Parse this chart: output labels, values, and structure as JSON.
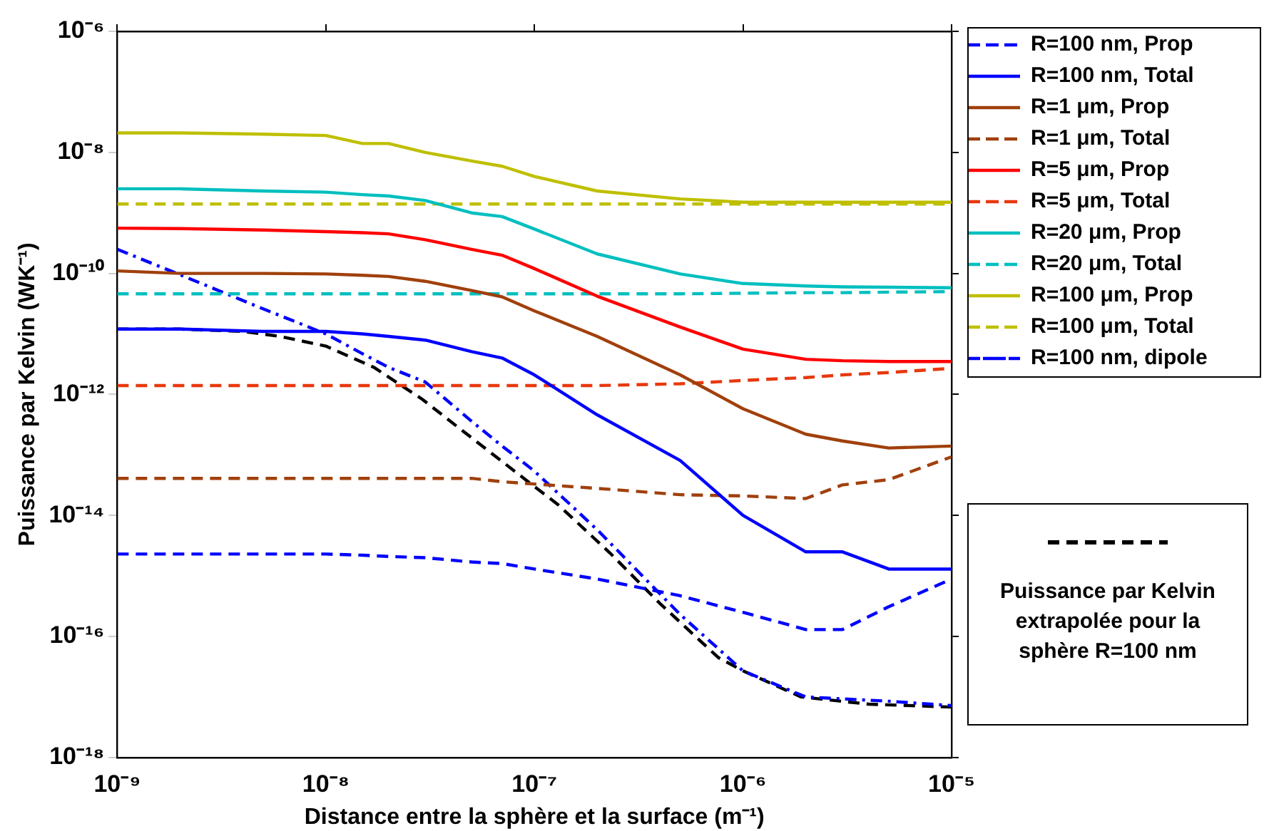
{
  "chart_data": {
    "type": "line",
    "xlabel": "Distance entre la sphère et la surface (m⁻¹)",
    "ylabel": "Puissance par Kelvin (WK⁻¹)",
    "log": "xy",
    "grid": false,
    "legend": "right",
    "marker": "none",
    "xlim": [
      1e-09,
      1e-05
    ],
    "xticks": [
      {
        "value": 1e-09,
        "label": "10⁻⁹"
      },
      {
        "value": 1e-08,
        "label": "10⁻⁸"
      },
      {
        "value": 1e-07,
        "label": "10⁻⁷"
      },
      {
        "value": 1e-06,
        "label": "10⁻⁶"
      },
      {
        "value": 1e-05,
        "label": "10⁻⁵"
      }
    ],
    "ylim": [
      1e-18,
      1e-06
    ],
    "yticks": [
      {
        "value": 1e-18,
        "label": "10⁻¹⁸"
      },
      {
        "value": 1e-16,
        "label": "10⁻¹⁶"
      },
      {
        "value": 1e-14,
        "label": "10⁻¹⁴"
      },
      {
        "value": 1e-12,
        "label": "10⁻¹²"
      },
      {
        "value": 1e-10,
        "label": "10⁻¹⁰"
      },
      {
        "value": 1e-08,
        "label": "10⁻⁸"
      },
      {
        "value": 1e-06,
        "label": "10⁻⁶"
      }
    ],
    "x": [
      1e-09,
      2e-09,
      5e-09,
      1e-08,
      1.5e-08,
      2e-08,
      3e-08,
      5e-08,
      7e-08,
      1e-07,
      2e-07,
      5e-07,
      1e-06,
      2e-06,
      3e-06,
      5e-06,
      1e-05
    ],
    "series": [
      {
        "name": "R=100 nm, Prop",
        "color": "#0000ff",
        "line_style": "dashed",
        "values": [
          2.3e-15,
          2.3e-15,
          2.3e-15,
          2.3e-15,
          2.2e-15,
          2.1e-15,
          2e-15,
          1.7e-15,
          1.6e-15,
          1.3e-15,
          8.9e-16,
          4.7e-16,
          2.5e-16,
          1.3e-16,
          1.3e-16,
          3.1e-16,
          8.9e-16
        ]
      },
      {
        "name": "R=100 nm, Total",
        "color": "#0000ff",
        "line_style": "solid",
        "values": [
          1.2e-11,
          1.2e-11,
          1.1e-11,
          1.1e-11,
          1e-11,
          9.1e-12,
          7.9e-12,
          5.1e-12,
          4e-12,
          2.1e-12,
          4.6e-13,
          8.1e-14,
          1e-14,
          2.5e-15,
          2.5e-15,
          1.3e-15,
          1.3e-15
        ]
      },
      {
        "name": "R=1 μm, Prop",
        "color": "#a0400c",
        "line_style": "solid",
        "values": [
          1.1e-10,
          1e-10,
          1e-10,
          9.8e-11,
          9.3e-11,
          8.9e-11,
          7.4e-11,
          5.2e-11,
          4.1e-11,
          2.4e-11,
          9.1e-12,
          2.1e-12,
          5.8e-13,
          2.2e-13,
          1.7e-13,
          1.3e-13,
          1.4e-13
        ]
      },
      {
        "name": "R=1 μm, Total",
        "color": "#a0400c",
        "line_style": "dashed",
        "values": [
          4.1e-14,
          4.1e-14,
          4.1e-14,
          4.1e-14,
          4.1e-14,
          4.1e-14,
          4.1e-14,
          4.1e-14,
          3.6e-14,
          3.3e-14,
          2.8e-14,
          2.2e-14,
          2.1e-14,
          1.9e-14,
          3.2e-14,
          3.9e-14,
          9.3e-14
        ]
      },
      {
        "name": "R=5 μm, Prop",
        "color": "#ff0000",
        "line_style": "solid",
        "values": [
          5.6e-10,
          5.5e-10,
          5.2e-10,
          4.9e-10,
          4.7e-10,
          4.5e-10,
          3.6e-10,
          2.5e-10,
          2e-10,
          1.2e-10,
          4.2e-11,
          1.3e-11,
          5.6e-12,
          3.8e-12,
          3.6e-12,
          3.5e-12,
          3.5e-12
        ]
      },
      {
        "name": "R=5 μm, Total",
        "color": "#e8380d",
        "line_style": "dashed",
        "values": [
          1.4e-12,
          1.4e-12,
          1.4e-12,
          1.4e-12,
          1.4e-12,
          1.4e-12,
          1.4e-12,
          1.4e-12,
          1.4e-12,
          1.4e-12,
          1.4e-12,
          1.5e-12,
          1.7e-12,
          1.9e-12,
          2.1e-12,
          2.3e-12,
          2.7e-12
        ]
      },
      {
        "name": "R=20 μm, Prop",
        "color": "#00bfbf",
        "line_style": "solid",
        "values": [
          2.5e-09,
          2.5e-09,
          2.3e-09,
          2.2e-09,
          2e-09,
          1.9e-09,
          1.6e-09,
          1e-09,
          8.7e-10,
          5.4e-10,
          2.1e-10,
          9.8e-11,
          6.8e-11,
          6.2e-11,
          6e-11,
          5.9e-11,
          5.8e-11
        ]
      },
      {
        "name": "R=20 μm, Total",
        "color": "#00bfbf",
        "line_style": "dashed",
        "values": [
          4.6e-11,
          4.6e-11,
          4.6e-11,
          4.6e-11,
          4.6e-11,
          4.6e-11,
          4.6e-11,
          4.6e-11,
          4.6e-11,
          4.6e-11,
          4.6e-11,
          4.6e-11,
          4.7e-11,
          4.8e-11,
          4.8e-11,
          4.9e-11,
          5e-11
        ]
      },
      {
        "name": "R=100 μm, Prop",
        "color": "#bfbf00",
        "line_style": "solid",
        "values": [
          2.1e-08,
          2.1e-08,
          2e-08,
          1.9e-08,
          1.4e-08,
          1.4e-08,
          1e-08,
          7.2e-09,
          5.9e-09,
          4e-09,
          2.3e-09,
          1.7e-09,
          1.5e-09,
          1.5e-09,
          1.5e-09,
          1.5e-09,
          1.5e-09
        ]
      },
      {
        "name": "R=100 μm, Total",
        "color": "#bfbf00",
        "line_style": "dashed",
        "values": [
          1.4e-09,
          1.4e-09,
          1.4e-09,
          1.4e-09,
          1.4e-09,
          1.4e-09,
          1.4e-09,
          1.4e-09,
          1.4e-09,
          1.4e-09,
          1.4e-09,
          1.4e-09,
          1.4e-09,
          1.4e-09,
          1.4e-09,
          1.4e-09,
          1.4e-09
        ]
      },
      {
        "name": "R=100 nm, dipole",
        "color": "#0000ff",
        "line_style": "dashdot",
        "values": [
          2.5e-10,
          9.5e-11,
          2.6e-11,
          1e-11,
          4.7e-12,
          2.8e-12,
          1.6e-12,
          3.6e-13,
          1.4e-13,
          5.4e-14,
          5.8e-15,
          2.3e-16,
          2.7e-17,
          1e-17,
          9.3e-18,
          8.5e-18,
          7.2e-18
        ]
      },
      {
        "name": "Puissance par Kelvin extrapolée pour la sphère R=100 nm",
        "color": "#000000",
        "line_style": "dashed",
        "x": [
          1e-09,
          2e-09,
          4e-09,
          6e-09,
          1e-08,
          1.7e-08,
          2.9e-08,
          4.4e-08,
          1e-07,
          1.3e-07,
          2.3e-07,
          4e-07,
          7.6e-07,
          1e-06,
          1.9e-06,
          4e-06,
          1e-05
        ],
        "values": [
          1.2e-11,
          1.2e-11,
          1.1e-11,
          9.1e-12,
          6.3e-12,
          2.8e-12,
          8.3e-13,
          2.7e-13,
          3e-14,
          1.5e-14,
          2.4e-15,
          3.5e-16,
          4.5e-17,
          2.7e-17,
          1e-17,
          7.6e-18,
          6.8e-18
        ]
      }
    ]
  }
}
